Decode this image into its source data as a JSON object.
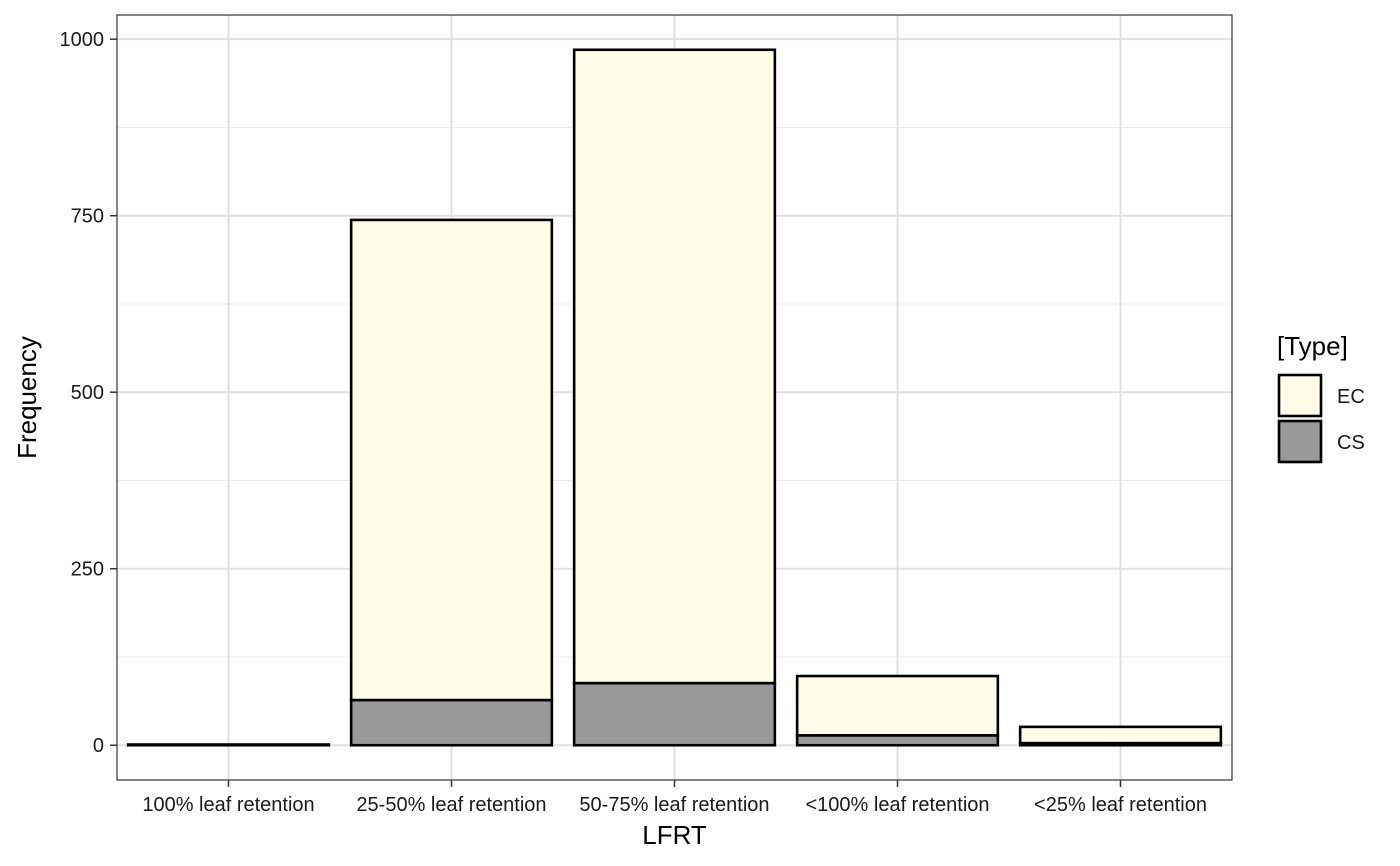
{
  "chart_data": {
    "type": "bar",
    "stacked": true,
    "title": "",
    "xlabel": "LFRT",
    "ylabel": "Frequency",
    "categories": [
      "100% leaf retention",
      "25-50% leaf retention",
      "50-75% leaf retention",
      "<100% leaf retention",
      "<25% leaf retention"
    ],
    "series": [
      {
        "name": "CS",
        "color": "#999999",
        "values": [
          1,
          64,
          88,
          14,
          3
        ]
      },
      {
        "name": "EC",
        "color": "#FEFBE7",
        "values": [
          0,
          680,
          897,
          84,
          23
        ]
      }
    ],
    "totals": [
      1,
      744,
      985,
      98,
      26
    ],
    "yticks": [
      0,
      250,
      500,
      750,
      1000
    ],
    "ylim": [
      -49.25,
      1034.25
    ],
    "grid": true,
    "legend": {
      "title": "[Type]",
      "position": "right",
      "entries": [
        {
          "label": "EC",
          "color": "#FEFBE7"
        },
        {
          "label": "CS",
          "color": "#999999"
        }
      ]
    }
  }
}
